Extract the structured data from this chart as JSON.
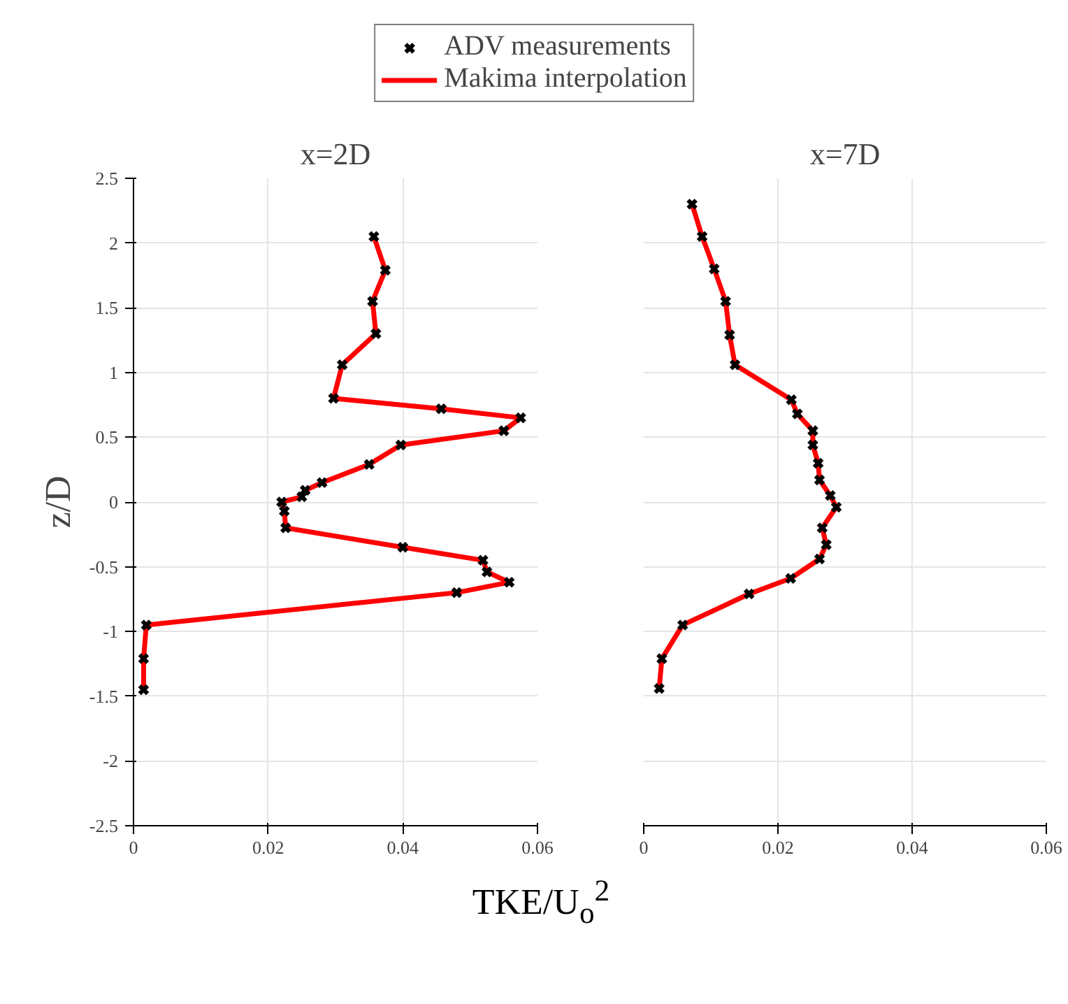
{
  "chart_data": [
    {
      "type": "scatter",
      "title": "x=2D",
      "xlabel": "TKE/U$_{o}$$^{2}$",
      "ylabel": "z/D",
      "legend": "top",
      "grid": true,
      "xlim": [
        0,
        0.06
      ],
      "xticks": [
        0,
        0.02,
        0.04,
        0.06
      ],
      "ylim": [
        -2.5,
        2.5
      ],
      "yticks": [
        -2.5,
        -2,
        -1.5,
        -1,
        -0.5,
        0,
        0.5,
        1,
        1.5,
        2,
        2.5
      ],
      "series": [
        {
          "name": "ADV measurements",
          "marker": "cross",
          "color": "#000000",
          "x": [
            0.0357,
            0.0374,
            0.0355,
            0.036,
            0.031,
            0.0297,
            0.0457,
            0.0575,
            0.055,
            0.0397,
            0.035,
            0.028,
            0.0255,
            0.025,
            0.022,
            0.0224,
            0.0226,
            0.04,
            0.0519,
            0.0525,
            0.0558,
            0.048,
            0.0019,
            0.0015,
            0.0015
          ],
          "values": [
            2.05,
            1.79,
            1.55,
            1.3,
            1.06,
            0.8,
            0.72,
            0.65,
            0.55,
            0.44,
            0.29,
            0.15,
            0.09,
            0.04,
            0.0,
            -0.07,
            -0.2,
            -0.35,
            -0.45,
            -0.54,
            -0.62,
            -0.7,
            -0.95,
            -1.21,
            -1.45
          ]
        },
        {
          "name": "Makima interpolation",
          "type": "line",
          "line_style": "solid",
          "color": "#ff0000",
          "x": [
            0.0357,
            0.0374,
            0.0355,
            0.036,
            0.031,
            0.0297,
            0.0457,
            0.0575,
            0.055,
            0.0397,
            0.035,
            0.028,
            0.0255,
            0.025,
            0.022,
            0.0224,
            0.0226,
            0.04,
            0.0519,
            0.0525,
            0.0558,
            0.048,
            0.0019,
            0.0015,
            0.0015
          ],
          "values": [
            2.05,
            1.79,
            1.55,
            1.3,
            1.06,
            0.8,
            0.72,
            0.65,
            0.55,
            0.44,
            0.29,
            0.15,
            0.09,
            0.04,
            0.0,
            -0.07,
            -0.2,
            -0.35,
            -0.45,
            -0.54,
            -0.62,
            -0.7,
            -0.95,
            -1.21,
            -1.45
          ]
        }
      ]
    },
    {
      "type": "scatter",
      "title": "x=7D",
      "grid": true,
      "tick_labels": "x",
      "xlim": [
        0,
        0.06
      ],
      "xticks": [
        0,
        0.02,
        0.04,
        0.06
      ],
      "ylim": [
        -2.5,
        2.5
      ],
      "yticks": [
        -2.5,
        -2,
        -1.5,
        -1,
        -0.5,
        0,
        0.5,
        1,
        1.5,
        2,
        2.5
      ],
      "series": [
        {
          "marker": "cross",
          "color": "#000000",
          "x": [
            0.0072,
            0.0087,
            0.0105,
            0.0122,
            0.0128,
            0.0136,
            0.022,
            0.0229,
            0.0252,
            0.0252,
            0.026,
            0.0262,
            0.0278,
            0.0287,
            0.0266,
            0.0272,
            0.0262,
            0.0219,
            0.0157,
            0.0058,
            0.0027,
            0.0023
          ],
          "values": [
            2.3,
            2.05,
            1.8,
            1.55,
            1.29,
            1.06,
            0.79,
            0.68,
            0.55,
            0.44,
            0.3,
            0.17,
            0.05,
            -0.04,
            -0.2,
            -0.33,
            -0.44,
            -0.59,
            -0.71,
            -0.95,
            -1.21,
            -1.44
          ]
        },
        {
          "type": "line",
          "line_style": "solid",
          "color": "#ff0000",
          "x": [
            0.0072,
            0.0087,
            0.0105,
            0.0122,
            0.0128,
            0.0136,
            0.022,
            0.0229,
            0.0252,
            0.0252,
            0.026,
            0.0262,
            0.0278,
            0.0287,
            0.0266,
            0.0272,
            0.0262,
            0.0219,
            0.0157,
            0.0058,
            0.0027,
            0.0023
          ],
          "values": [
            2.3,
            2.05,
            1.8,
            1.55,
            1.29,
            1.06,
            0.79,
            0.68,
            0.55,
            0.44,
            0.3,
            0.17,
            0.05,
            -0.04,
            -0.2,
            -0.33,
            -0.44,
            -0.59,
            -0.71,
            -0.95,
            -1.21,
            -1.44
          ]
        }
      ]
    }
  ]
}
